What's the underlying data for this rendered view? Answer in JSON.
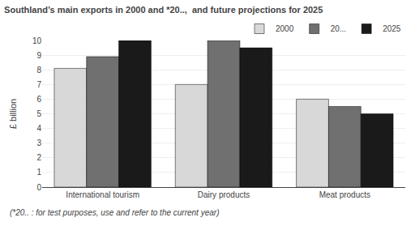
{
  "chart_data": {
    "type": "bar",
    "title": "Southland’s main exports in 2000 and *20..,  and future projections for 2025",
    "annotations": [
      "(*20.. : for test purposes, use and refer to the current year)"
    ],
    "categories": [
      "International tourism",
      "Dairy products",
      "Meat products"
    ],
    "series": [
      {
        "name": "2000",
        "color": "#d8d8d8",
        "values": [
          8.1,
          7.0,
          6.0
        ]
      },
      {
        "name": "20...",
        "color": "#707070",
        "values": [
          8.9,
          10.0,
          5.5
        ]
      },
      {
        "name": "2025",
        "color": "#1a1a1a",
        "values": [
          10.0,
          9.5,
          5.0
        ]
      }
    ],
    "y_label": "£ billion",
    "ylim": [
      0,
      10
    ],
    "yticks": [
      0,
      1,
      2,
      3,
      4,
      5,
      6,
      7,
      8,
      9,
      10
    ],
    "grid": true,
    "legend": "upper right"
  }
}
